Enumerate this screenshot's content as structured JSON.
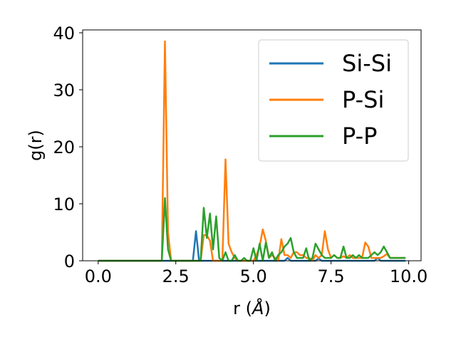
{
  "chart_data": {
    "type": "line",
    "title": "",
    "xlabel": "r (",
    "xlabel_unit": "Å",
    "xlabel_close": ")",
    "ylabel": "g(r)",
    "xlim": [
      -0.5,
      10.4
    ],
    "ylim": [
      0,
      40.5
    ],
    "xticks": [
      0.0,
      2.5,
      5.0,
      7.5,
      10.0
    ],
    "xtick_labels": [
      "0.0",
      "2.5",
      "5.0",
      "7.5",
      "10.0"
    ],
    "yticks": [
      0,
      10,
      20,
      30,
      40
    ],
    "ytick_labels": [
      "0",
      "10",
      "20",
      "30",
      "40"
    ],
    "grid": false,
    "legend_position": "upper-right",
    "series": [
      {
        "name": "Si-Si",
        "color": "#1f77b4",
        "x": [
          0.0,
          3.05,
          3.15,
          3.25,
          3.35,
          3.45,
          5.0,
          6.0,
          6.1,
          6.2,
          7.0,
          7.1,
          7.2,
          8.9,
          9.0,
          9.1,
          9.9
        ],
        "y": [
          0,
          0,
          5.2,
          0,
          0,
          0,
          0,
          0,
          0.5,
          0,
          0,
          0.4,
          0,
          0,
          0.5,
          0,
          0
        ]
      },
      {
        "name": "P-Si",
        "color": "#ff7f0e",
        "x": [
          0.0,
          2.05,
          2.15,
          2.25,
          2.35,
          3.3,
          3.4,
          3.5,
          3.6,
          3.7,
          3.8,
          3.9,
          4.0,
          4.1,
          4.2,
          4.3,
          4.4,
          4.5,
          4.6,
          4.7,
          4.8,
          4.9,
          5.0,
          5.1,
          5.2,
          5.3,
          5.4,
          5.5,
          5.6,
          5.7,
          5.8,
          5.9,
          6.0,
          6.1,
          6.2,
          6.3,
          6.4,
          6.5,
          6.6,
          6.7,
          6.8,
          6.9,
          7.0,
          7.1,
          7.2,
          7.3,
          7.4,
          7.5,
          7.6,
          7.7,
          7.8,
          7.9,
          8.0,
          8.1,
          8.2,
          8.3,
          8.4,
          8.5,
          8.6,
          8.7,
          8.8,
          8.9,
          9.0,
          9.1,
          9.2,
          9.3,
          9.4,
          9.5,
          9.6,
          9.7,
          9.8,
          9.9
        ],
        "y": [
          0,
          0,
          38.5,
          5.0,
          0,
          0,
          4.5,
          4.5,
          3.5,
          0,
          0,
          0,
          0,
          17.8,
          3.0,
          1.5,
          0.5,
          0,
          0,
          0,
          0,
          0,
          0,
          1.0,
          2.5,
          5.5,
          3.5,
          0.5,
          1.0,
          0.5,
          0,
          3.8,
          1.0,
          1.0,
          0.5,
          1.5,
          1.5,
          1.0,
          1.0,
          0.5,
          0.5,
          0,
          1.0,
          0.5,
          1.0,
          5.2,
          2.0,
          0.5,
          1.0,
          0.5,
          0.5,
          0.8,
          0.5,
          1.0,
          0.5,
          0.5,
          0.5,
          0.5,
          3.2,
          2.5,
          0.5,
          0.5,
          0.5,
          0.5,
          0.8,
          1.2,
          0.5,
          0.5,
          0.5,
          0.5,
          0.5,
          0.5
        ]
      },
      {
        "name": "P-P",
        "color": "#2ca02c",
        "x": [
          0.0,
          2.05,
          2.15,
          2.25,
          2.35,
          3.2,
          3.3,
          3.4,
          3.5,
          3.6,
          3.7,
          3.8,
          3.9,
          4.0,
          4.1,
          4.2,
          4.3,
          4.4,
          4.5,
          4.6,
          4.7,
          4.8,
          4.9,
          5.0,
          5.1,
          5.2,
          5.3,
          5.4,
          5.5,
          5.6,
          5.7,
          5.8,
          5.9,
          6.0,
          6.1,
          6.2,
          6.3,
          6.4,
          6.5,
          6.6,
          6.7,
          6.8,
          6.9,
          7.0,
          7.1,
          7.2,
          7.3,
          7.4,
          7.5,
          7.6,
          7.7,
          7.8,
          7.9,
          8.0,
          8.1,
          8.2,
          8.3,
          8.4,
          8.5,
          8.6,
          8.7,
          8.8,
          8.9,
          9.0,
          9.1,
          9.2,
          9.3,
          9.4,
          9.5,
          9.6,
          9.7,
          9.8,
          9.9
        ],
        "y": [
          0,
          0,
          11.0,
          2.0,
          0,
          0,
          0,
          9.3,
          4.0,
          8.3,
          2.0,
          7.8,
          0.5,
          0,
          1.5,
          0,
          0,
          1.0,
          0,
          0,
          0.5,
          0,
          0,
          2.2,
          0,
          3.0,
          0,
          3.2,
          0.5,
          1.5,
          0,
          1.0,
          1.5,
          2.5,
          3.0,
          4.0,
          1.5,
          0.5,
          0.5,
          0.5,
          2.2,
          0,
          0.5,
          3.0,
          2.0,
          1.0,
          0.5,
          0.5,
          0.5,
          1.0,
          0.5,
          0.5,
          2.5,
          0.5,
          0.5,
          1.0,
          0.5,
          1.0,
          0.5,
          0.5,
          0.5,
          1.0,
          1.5,
          1.0,
          1.5,
          2.5,
          1.5,
          0.5,
          0.5,
          0.5,
          0.5,
          0.5,
          0.5
        ]
      }
    ]
  }
}
